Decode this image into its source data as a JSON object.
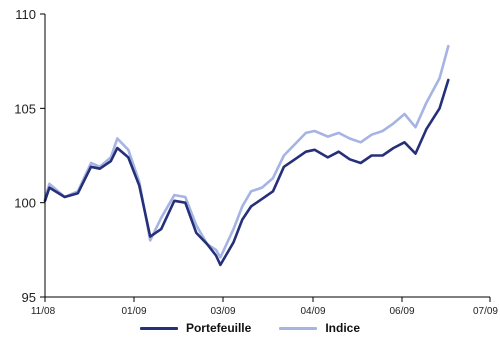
{
  "chart_data": {
    "type": "line",
    "title": "",
    "xlabel": "",
    "ylabel": "",
    "ylim": [
      95,
      110
    ],
    "yticks": [
      "95",
      "100",
      "105",
      "110"
    ],
    "xticks": [
      "11/08",
      "01/09",
      "03/09",
      "04/09",
      "06/09",
      "07/09"
    ],
    "xlim": [
      0,
      20.3
    ],
    "grid": false,
    "legend_position": "bottom",
    "series": [
      {
        "name": "Portefeuille",
        "color": "#26307a",
        "points": [
          [
            0,
            100.1
          ],
          [
            0.2,
            100.8
          ],
          [
            0.9,
            100.3
          ],
          [
            1.5,
            100.5
          ],
          [
            2.1,
            101.9
          ],
          [
            2.5,
            101.8
          ],
          [
            3.0,
            102.2
          ],
          [
            3.3,
            102.9
          ],
          [
            3.8,
            102.4
          ],
          [
            4.3,
            100.9
          ],
          [
            4.8,
            98.2
          ],
          [
            5.3,
            98.6
          ],
          [
            5.9,
            100.1
          ],
          [
            6.4,
            100.0
          ],
          [
            6.9,
            98.4
          ],
          [
            7.4,
            97.8
          ],
          [
            7.8,
            97.2
          ],
          [
            8.0,
            96.7
          ],
          [
            8.6,
            97.9
          ],
          [
            9.0,
            99.1
          ],
          [
            9.4,
            99.8
          ],
          [
            9.9,
            100.2
          ],
          [
            10.4,
            100.6
          ],
          [
            10.9,
            101.9
          ],
          [
            11.4,
            102.3
          ],
          [
            11.9,
            102.7
          ],
          [
            12.3,
            102.8
          ],
          [
            12.9,
            102.4
          ],
          [
            13.4,
            102.7
          ],
          [
            13.9,
            102.3
          ],
          [
            14.4,
            102.1
          ],
          [
            14.9,
            102.5
          ],
          [
            15.4,
            102.5
          ],
          [
            15.9,
            102.9
          ],
          [
            16.4,
            103.2
          ],
          [
            16.9,
            102.6
          ],
          [
            17.4,
            103.9
          ],
          [
            18.0,
            105.0
          ],
          [
            18.4,
            106.5
          ]
        ]
      },
      {
        "name": "Indice",
        "color": "#a6b4e4",
        "points": [
          [
            0,
            100.2
          ],
          [
            0.2,
            101.0
          ],
          [
            0.9,
            100.3
          ],
          [
            1.5,
            100.6
          ],
          [
            2.1,
            102.1
          ],
          [
            2.5,
            101.9
          ],
          [
            3.0,
            102.4
          ],
          [
            3.3,
            103.4
          ],
          [
            3.8,
            102.8
          ],
          [
            4.3,
            101.1
          ],
          [
            4.8,
            98.0
          ],
          [
            5.3,
            99.2
          ],
          [
            5.9,
            100.4
          ],
          [
            6.4,
            100.3
          ],
          [
            6.9,
            98.8
          ],
          [
            7.4,
            97.8
          ],
          [
            7.8,
            97.5
          ],
          [
            8.0,
            97.1
          ],
          [
            8.6,
            98.6
          ],
          [
            9.0,
            99.8
          ],
          [
            9.4,
            100.6
          ],
          [
            9.9,
            100.8
          ],
          [
            10.4,
            101.3
          ],
          [
            10.9,
            102.5
          ],
          [
            11.4,
            103.1
          ],
          [
            11.9,
            103.7
          ],
          [
            12.3,
            103.8
          ],
          [
            12.9,
            103.5
          ],
          [
            13.4,
            103.7
          ],
          [
            13.9,
            103.4
          ],
          [
            14.4,
            103.2
          ],
          [
            14.9,
            103.6
          ],
          [
            15.4,
            103.8
          ],
          [
            15.9,
            104.2
          ],
          [
            16.4,
            104.7
          ],
          [
            16.9,
            104.0
          ],
          [
            17.4,
            105.3
          ],
          [
            18.0,
            106.6
          ],
          [
            18.4,
            108.3
          ]
        ]
      }
    ]
  }
}
